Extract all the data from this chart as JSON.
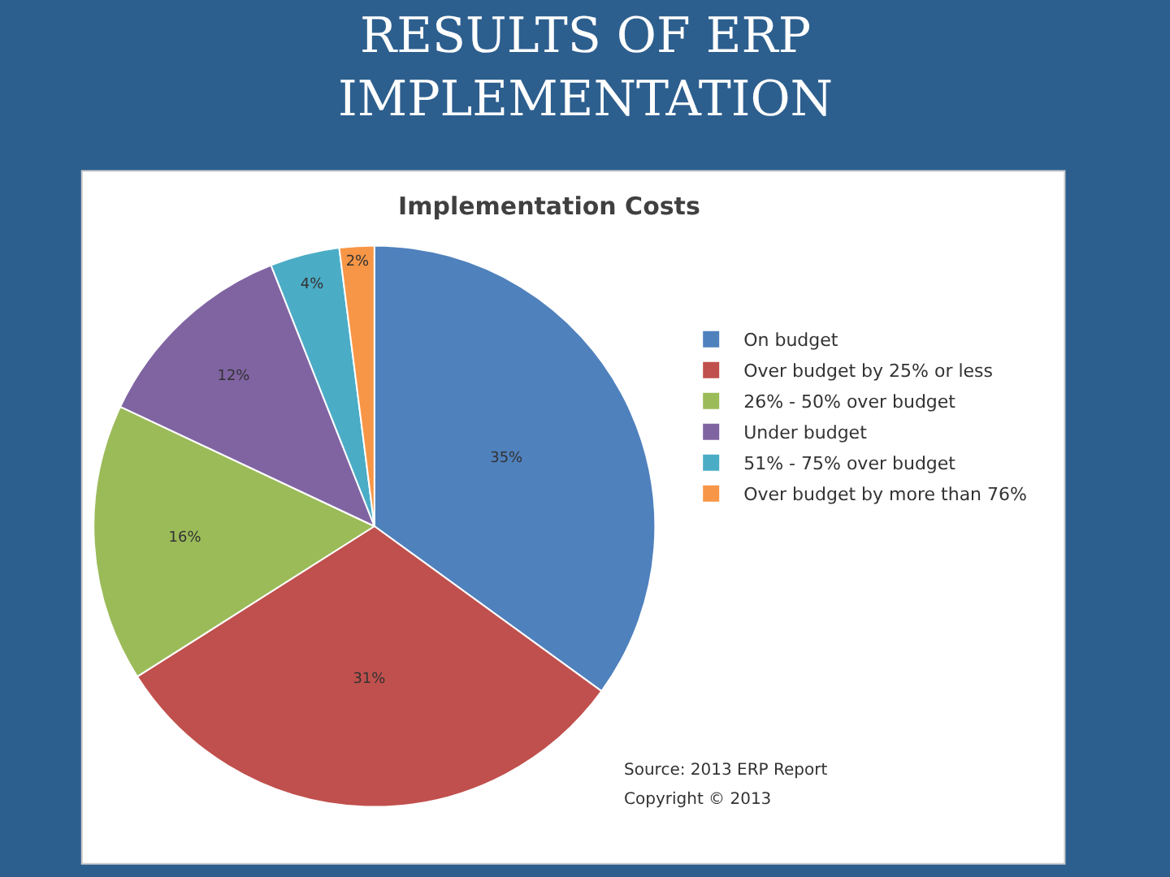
{
  "chart_data": {
    "type": "pie",
    "title": "RESULTS OF ERP IMPLEMENTATION",
    "subtitle": "Implementation Costs",
    "categories": [
      "On budget",
      "Over budget by 25% or less",
      "26% - 50% over budget",
      "Under budget",
      "51% - 75% over budget",
      "Over budget by more than 76%"
    ],
    "values": [
      35,
      31,
      16,
      12,
      4,
      2
    ],
    "value_labels": [
      "35%",
      "31%",
      "16%",
      "12%",
      "4%",
      "2%"
    ],
    "colors": [
      "#4f81bd",
      "#c0504d",
      "#9bbb59",
      "#8064a2",
      "#4bacc6",
      "#f79646"
    ],
    "legend": "right",
    "annotations": [
      "Source: 2013 ERP Report",
      "Copyright © 2013"
    ]
  }
}
